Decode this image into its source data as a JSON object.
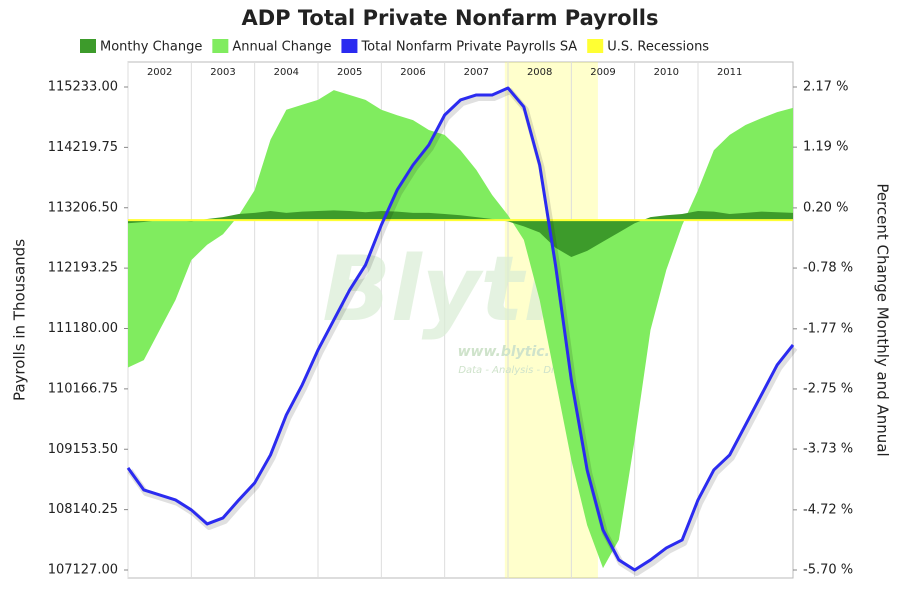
{
  "chart_data": {
    "type": "combo",
    "title": "ADP Total Private Nonfarm Payrolls",
    "ylabel": "Payrolls in Thousands",
    "y2label": "Percent Change Monthly and Annual",
    "watermark": [
      "Blytic",
      "www.blytic.com",
      "Data - Analysis - Distribution"
    ],
    "x": [
      2002,
      2002.25,
      2002.5,
      2002.75,
      2003,
      2003.25,
      2003.5,
      2003.75,
      2004,
      2004.25,
      2004.5,
      2004.75,
      2005,
      2005.25,
      2005.5,
      2005.75,
      2006,
      2006.25,
      2006.5,
      2006.75,
      2007,
      2007.25,
      2007.5,
      2007.75,
      2008,
      2008.25,
      2008.5,
      2008.75,
      2009,
      2009.25,
      2009.5,
      2009.75,
      2010,
      2010.25,
      2010.5,
      2010.75,
      2011,
      2011.25,
      2011.5,
      2011.75,
      2012,
      2012.25,
      2012.5
    ],
    "xlim": [
      2002,
      2012.5
    ],
    "xticks": [
      2002,
      2003,
      2004,
      2005,
      2006,
      2007,
      2008,
      2009,
      2010,
      2011
    ],
    "ylim": [
      107127,
      115233
    ],
    "yticks": [
      {
        "value": 115233,
        "label": "115233.00"
      },
      {
        "value": 114219.75,
        "label": "114219.75"
      },
      {
        "value": 113206.5,
        "label": "113206.50"
      },
      {
        "value": 112193.25,
        "label": "112193.25"
      },
      {
        "value": 111180,
        "label": "111180.00"
      },
      {
        "value": 110166.75,
        "label": "110166.75"
      },
      {
        "value": 109153.5,
        "label": "109153.50"
      },
      {
        "value": 108140.25,
        "label": "108140.25"
      },
      {
        "value": 107127,
        "label": "107127.00"
      }
    ],
    "y2lim": [
      -5.7,
      2.17
    ],
    "y2ticks": [
      {
        "value": 2.17,
        "label": "2.17 %"
      },
      {
        "value": 1.19,
        "label": "1.19 %"
      },
      {
        "value": 0.2,
        "label": "0.20 %"
      },
      {
        "value": -0.78,
        "label": "-0.78 %"
      },
      {
        "value": -1.77,
        "label": "-1.77 %"
      },
      {
        "value": -2.75,
        "label": "-2.75 %"
      },
      {
        "value": -3.73,
        "label": "-3.73 %"
      },
      {
        "value": -4.72,
        "label": "-4.72 %"
      },
      {
        "value": -5.7,
        "label": "-5.70 %"
      }
    ],
    "grid": true,
    "series": [
      {
        "name": "Monthy Change",
        "color": "#3d9b2b",
        "kind": "area",
        "axis": "y2",
        "values": [
          -0.05,
          -0.03,
          0,
          0,
          -0.02,
          0.02,
          0.05,
          0.1,
          0.12,
          0.15,
          0.12,
          0.14,
          0.15,
          0.16,
          0.15,
          0.13,
          0.15,
          0.14,
          0.12,
          0.12,
          0.1,
          0.08,
          0.05,
          0.02,
          -0.02,
          -0.1,
          -0.2,
          -0.45,
          -0.6,
          -0.5,
          -0.35,
          -0.2,
          -0.05,
          0.05,
          0.08,
          0.1,
          0.15,
          0.14,
          0.1,
          0.12,
          0.14,
          0.13,
          0.12
        ]
      },
      {
        "name": "Annual Change",
        "color": "#80ec5f",
        "kind": "area",
        "axis": "y2",
        "values": [
          -2.4,
          -2.28,
          -1.79,
          -1.3,
          -0.65,
          -0.4,
          -0.23,
          0.08,
          0.49,
          1.31,
          1.8,
          1.88,
          1.96,
          2.12,
          2.04,
          1.96,
          1.8,
          1.71,
          1.63,
          1.47,
          1.39,
          1.14,
          0.82,
          0.41,
          0.08,
          -0.32,
          -1.3,
          -2.6,
          -3.91,
          -4.97,
          -5.67,
          -5.21,
          -3.58,
          -1.79,
          -0.81,
          -0.08,
          0.49,
          1.14,
          1.39,
          1.55,
          1.66,
          1.76,
          1.83
        ]
      },
      {
        "name": "Total Nonfarm Private Payrolls SA",
        "color": "#2b2bf0",
        "kind": "line",
        "values": [
          108840,
          108470,
          108387,
          108303,
          108135,
          107900,
          108001,
          108303,
          108588,
          109058,
          109729,
          110233,
          110820,
          111323,
          111827,
          112246,
          112917,
          113505,
          113924,
          114260,
          114763,
          115015,
          115099,
          115099,
          115216,
          114900,
          113924,
          112246,
          110317,
          108806,
          107799,
          107296,
          107127,
          107296,
          107497,
          107632,
          108303,
          108806,
          109058,
          109561,
          110065,
          110568,
          110904
        ]
      }
    ],
    "recessions": {
      "name": "U.S. Recessions",
      "color": "#ffff33",
      "spans": [
        [
          2007.95,
          2009.42
        ]
      ]
    }
  }
}
